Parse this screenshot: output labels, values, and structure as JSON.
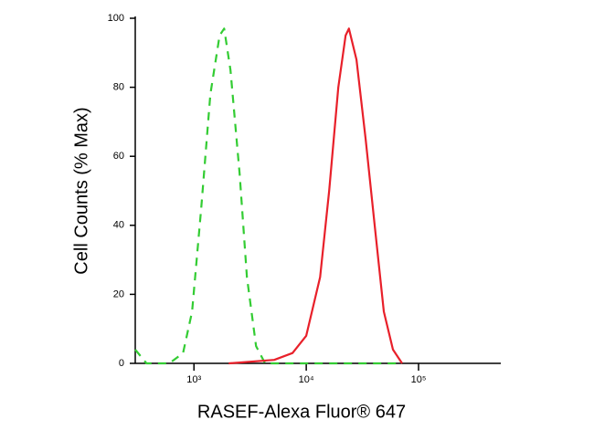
{
  "chart_data": {
    "type": "line",
    "xlabel": "RASEF-Alexa Fluor® 647",
    "ylabel": "Cell Counts (% Max)",
    "xscale": "log",
    "xlim": [
      300,
      540000
    ],
    "ylim": [
      0,
      100
    ],
    "xticks": [
      {
        "value": 1000,
        "label": "10³"
      },
      {
        "value": 10000,
        "label": "10⁴"
      },
      {
        "value": 100000,
        "label": "10⁵"
      }
    ],
    "yticks": [
      0,
      20,
      40,
      60,
      80,
      100
    ],
    "series": [
      {
        "color": "#33cc33",
        "line_style": "dashed",
        "x": [
          300,
          378,
          603,
          799,
          963,
          1161,
          1400,
          1690,
          1856,
          2115,
          2550,
          2960,
          3570,
          4300,
          71000
        ],
        "values": [
          4,
          0,
          0,
          3,
          15,
          45,
          78,
          95,
          97,
          85,
          55,
          25,
          5,
          0,
          0
        ]
      },
      {
        "color": "#e8202a",
        "line_style": "solid",
        "x": [
          2040,
          5190,
          7550,
          10000,
          13300,
          16000,
          19300,
          22400,
          24000,
          28000,
          33800,
          40700,
          49100,
          59200,
          71400
        ],
        "values": [
          0,
          1,
          3,
          8,
          25,
          50,
          80,
          95,
          97,
          88,
          65,
          40,
          15,
          4,
          0
        ]
      }
    ]
  }
}
